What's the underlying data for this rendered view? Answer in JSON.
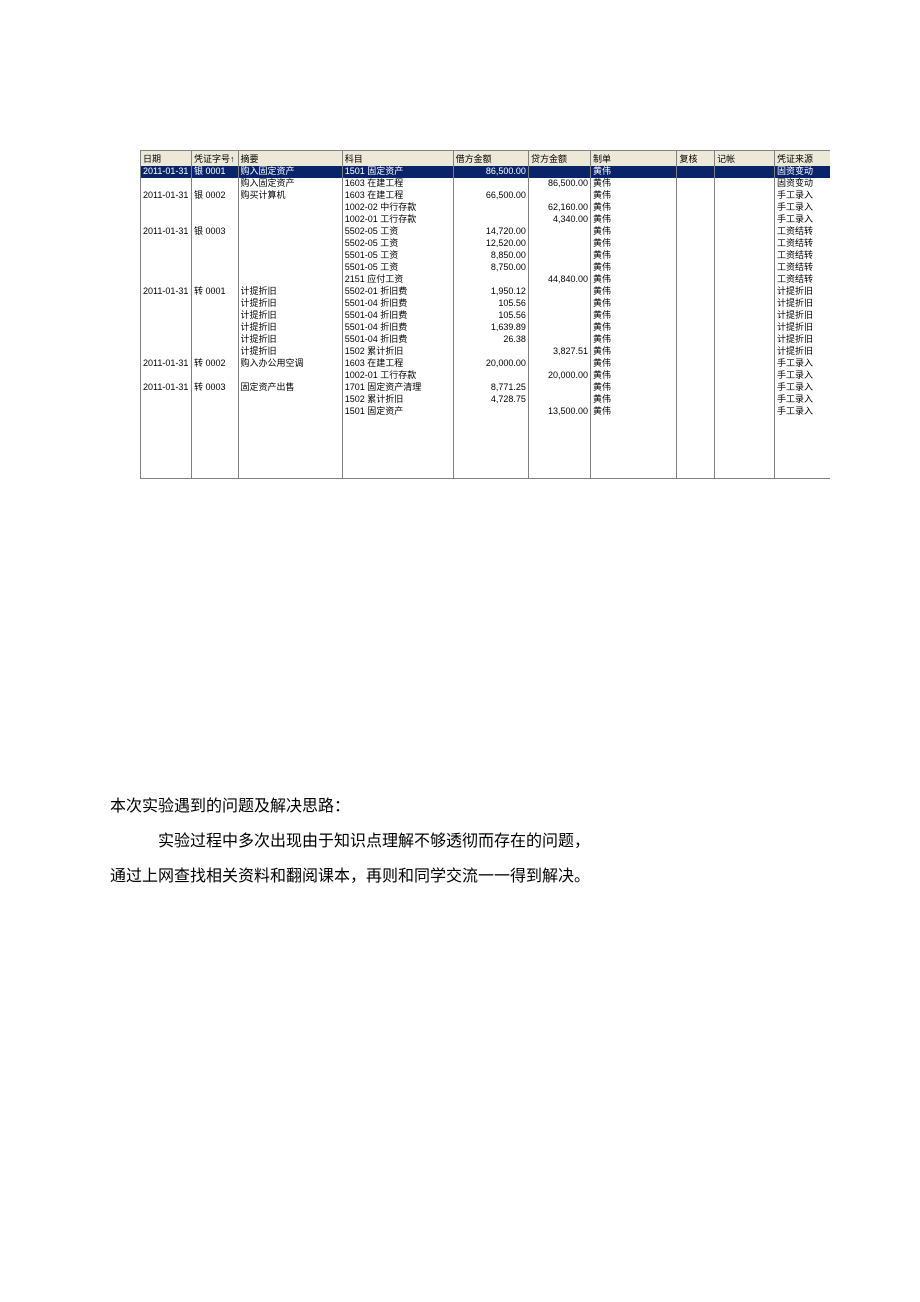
{
  "table": {
    "header_bg": "#ece9d8",
    "highlight_bg": "#0a246a",
    "highlight_text": "#ffffff",
    "border_color": "#808080",
    "columns": [
      {
        "key": "date",
        "label": "日期",
        "class": "col-date"
      },
      {
        "key": "voucher",
        "label": "凭证字号↑",
        "class": "col-voucher"
      },
      {
        "key": "summary",
        "label": "摘要",
        "class": "col-summary"
      },
      {
        "key": "subject",
        "label": "科目",
        "class": "col-subject"
      },
      {
        "key": "debit",
        "label": "借方金额",
        "class": "col-debit",
        "align": "right"
      },
      {
        "key": "credit",
        "label": "贷方金额",
        "class": "col-credit",
        "align": "right"
      },
      {
        "key": "prepare",
        "label": "制单",
        "class": "col-prepare"
      },
      {
        "key": "review",
        "label": "复核",
        "class": "col-review"
      },
      {
        "key": "post",
        "label": "记帐",
        "class": "col-post"
      },
      {
        "key": "source",
        "label": "凭证来源",
        "class": "col-source"
      }
    ],
    "rows": [
      {
        "date": "2011-01-31",
        "voucher": "银 0001",
        "summary": "购入固定资产",
        "subject": "1501 固定资产",
        "debit": "86,500.00",
        "credit": "",
        "prepare": "黄伟",
        "review": "",
        "post": "",
        "source": "固资变动",
        "highlight": true
      },
      {
        "date": "",
        "voucher": "",
        "summary": "购入固定资产",
        "subject": "1603 在建工程",
        "debit": "",
        "credit": "86,500.00",
        "prepare": "黄伟",
        "review": "",
        "post": "",
        "source": "固资变动"
      },
      {
        "date": "2011-01-31",
        "voucher": "银 0002",
        "summary": "购买计算机",
        "subject": "1603 在建工程",
        "debit": "66,500.00",
        "credit": "",
        "prepare": "黄伟",
        "review": "",
        "post": "",
        "source": "手工录入"
      },
      {
        "date": "",
        "voucher": "",
        "summary": "",
        "subject": "1002-02 中行存款",
        "debit": "",
        "credit": "62,160.00",
        "prepare": "黄伟",
        "review": "",
        "post": "",
        "source": "手工录入"
      },
      {
        "date": "",
        "voucher": "",
        "summary": "",
        "subject": "1002-01 工行存款",
        "debit": "",
        "credit": "4,340.00",
        "prepare": "黄伟",
        "review": "",
        "post": "",
        "source": "手工录入"
      },
      {
        "date": "2011-01-31",
        "voucher": "银 0003",
        "summary": "",
        "subject": "5502-05 工资",
        "debit": "14,720.00",
        "credit": "",
        "prepare": "黄伟",
        "review": "",
        "post": "",
        "source": "工资结转"
      },
      {
        "date": "",
        "voucher": "",
        "summary": "",
        "subject": "5502-05 工资",
        "debit": "12,520.00",
        "credit": "",
        "prepare": "黄伟",
        "review": "",
        "post": "",
        "source": "工资结转"
      },
      {
        "date": "",
        "voucher": "",
        "summary": "",
        "subject": "5501-05 工资",
        "debit": "8,850.00",
        "credit": "",
        "prepare": "黄伟",
        "review": "",
        "post": "",
        "source": "工资结转"
      },
      {
        "date": "",
        "voucher": "",
        "summary": "",
        "subject": "5501-05 工资",
        "debit": "8,750.00",
        "credit": "",
        "prepare": "黄伟",
        "review": "",
        "post": "",
        "source": "工资结转"
      },
      {
        "date": "",
        "voucher": "",
        "summary": "",
        "subject": "2151 应付工资",
        "debit": "",
        "credit": "44,840.00",
        "prepare": "黄伟",
        "review": "",
        "post": "",
        "source": "工资结转"
      },
      {
        "date": "2011-01-31",
        "voucher": "转 0001",
        "summary": "计提折旧",
        "subject": "5502-01 折旧费",
        "debit": "1,950.12",
        "credit": "",
        "prepare": "黄伟",
        "review": "",
        "post": "",
        "source": "计提折旧"
      },
      {
        "date": "",
        "voucher": "",
        "summary": "计提折旧",
        "subject": "5501-04 折旧费",
        "debit": "105.56",
        "credit": "",
        "prepare": "黄伟",
        "review": "",
        "post": "",
        "source": "计提折旧"
      },
      {
        "date": "",
        "voucher": "",
        "summary": "计提折旧",
        "subject": "5501-04 折旧费",
        "debit": "105.56",
        "credit": "",
        "prepare": "黄伟",
        "review": "",
        "post": "",
        "source": "计提折旧"
      },
      {
        "date": "",
        "voucher": "",
        "summary": "计提折旧",
        "subject": "5501-04 折旧费",
        "debit": "1,639.89",
        "credit": "",
        "prepare": "黄伟",
        "review": "",
        "post": "",
        "source": "计提折旧"
      },
      {
        "date": "",
        "voucher": "",
        "summary": "计提折旧",
        "subject": "5501-04 折旧费",
        "debit": "26.38",
        "credit": "",
        "prepare": "黄伟",
        "review": "",
        "post": "",
        "source": "计提折旧"
      },
      {
        "date": "",
        "voucher": "",
        "summary": "计提折旧",
        "subject": "1502 累计折旧",
        "debit": "",
        "credit": "3,827.51",
        "prepare": "黄伟",
        "review": "",
        "post": "",
        "source": "计提折旧"
      },
      {
        "date": "2011-01-31",
        "voucher": "转 0002",
        "summary": "购入办公用空调",
        "subject": "1603 在建工程",
        "debit": "20,000.00",
        "credit": "",
        "prepare": "黄伟",
        "review": "",
        "post": "",
        "source": "手工录入"
      },
      {
        "date": "",
        "voucher": "",
        "summary": "",
        "subject": "1002-01 工行存款",
        "debit": "",
        "credit": "20,000.00",
        "prepare": "黄伟",
        "review": "",
        "post": "",
        "source": "手工录入"
      },
      {
        "date": "2011-01-31",
        "voucher": "转 0003",
        "summary": "固定资产出售",
        "subject": "1701 固定资产清理",
        "debit": "8,771.25",
        "credit": "",
        "prepare": "黄伟",
        "review": "",
        "post": "",
        "source": "手工录入"
      },
      {
        "date": "",
        "voucher": "",
        "summary": "",
        "subject": "1502 累计折旧",
        "debit": "4,728.75",
        "credit": "",
        "prepare": "黄伟",
        "review": "",
        "post": "",
        "source": "手工录入"
      },
      {
        "date": "",
        "voucher": "",
        "summary": "",
        "subject": "1501 固定资产",
        "debit": "",
        "credit": "13,500.00",
        "prepare": "黄伟",
        "review": "",
        "post": "",
        "source": "手工录入"
      }
    ]
  },
  "body": {
    "p1": "本次实验遇到的问题及解决思路：",
    "p2": "实验过程中多次出现由于知识点理解不够透彻而存在的问题，",
    "p3": "通过上网查找相关资料和翻阅课本，再则和同学交流一一得到解决。"
  }
}
